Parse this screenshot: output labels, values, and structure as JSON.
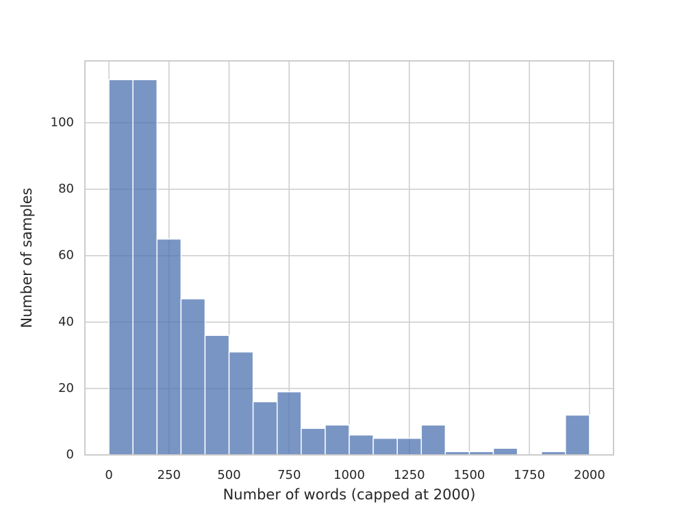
{
  "chart_data": {
    "type": "histogram",
    "x_label": "Number of words (capped at 2000)",
    "y_label": "Number of samples",
    "bins": [
      0,
      100,
      200,
      300,
      400,
      500,
      600,
      700,
      800,
      900,
      1000,
      1100,
      1200,
      1300,
      1400,
      1500,
      1600,
      1700,
      1800,
      1900,
      2000
    ],
    "values": [
      113,
      113,
      65,
      47,
      36,
      31,
      16,
      19,
      8,
      9,
      6,
      5,
      5,
      9,
      1,
      1,
      2,
      0,
      1,
      12
    ],
    "color": "#4c72b0",
    "opacity": 0.75,
    "xlim": [
      -100,
      2100
    ],
    "xticks": [
      0,
      250,
      500,
      750,
      1000,
      1250,
      1500,
      1750,
      2000
    ],
    "ylim": [
      0,
      118.65
    ],
    "yticks": [
      0,
      20,
      40,
      60,
      80,
      100
    ],
    "grid": true
  }
}
